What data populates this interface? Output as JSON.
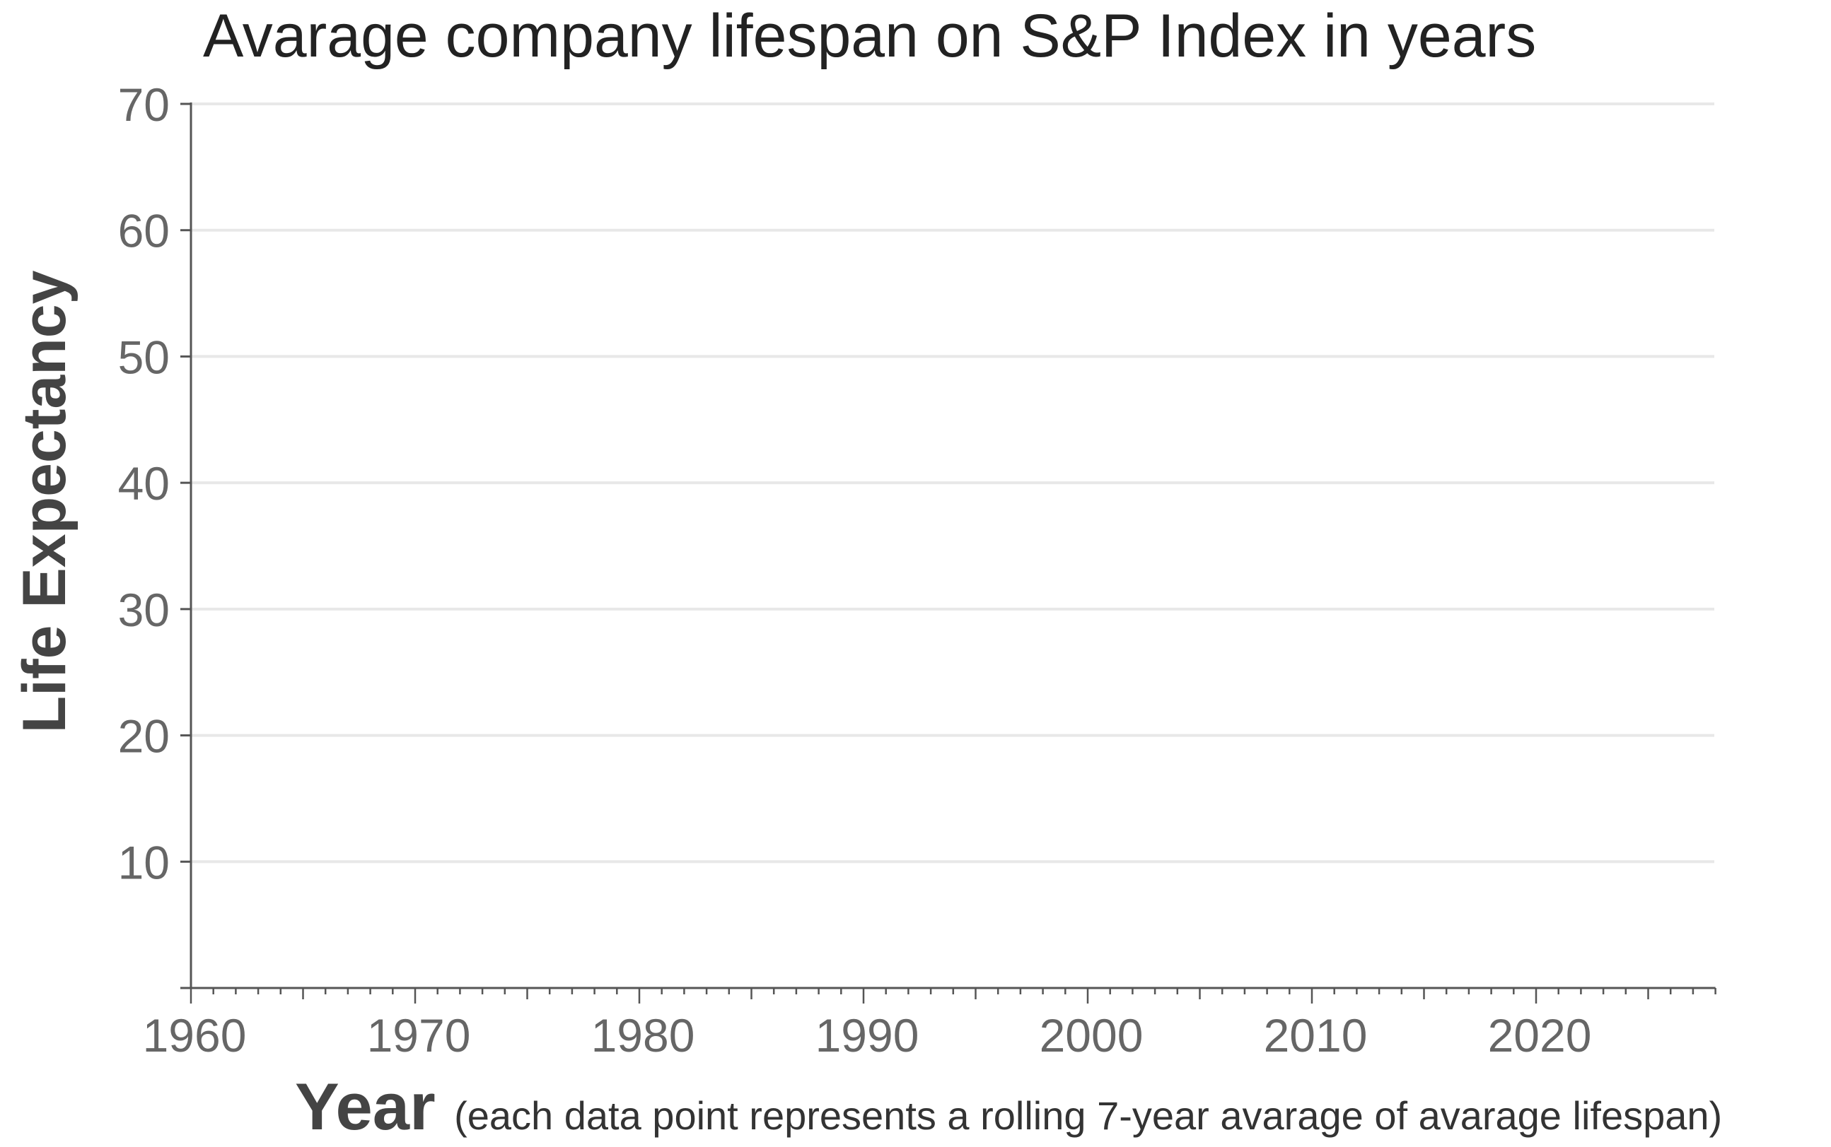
{
  "chart_data": {
    "type": "line",
    "title": "Avarage company lifespan on S&P Index in years",
    "ylabel": "Life Expectancy",
    "xlabel": "Year",
    "xlabel_note": "(each data point represents a rolling 7-year avarage of avarage lifespan)",
    "xlim": [
      1960,
      2028
    ],
    "ylim": [
      0,
      70
    ],
    "x_ticks": [
      1960,
      1970,
      1980,
      1990,
      2000,
      2010,
      2020
    ],
    "y_ticks": [
      10,
      20,
      30,
      40,
      50,
      60,
      70
    ],
    "grid": "horizontal",
    "legend": "none",
    "series": [],
    "colors": {
      "axis": "#555555",
      "grid": "#e8e8e8",
      "tick_label": "#666666",
      "title": "#222222",
      "label": "#444444"
    }
  }
}
